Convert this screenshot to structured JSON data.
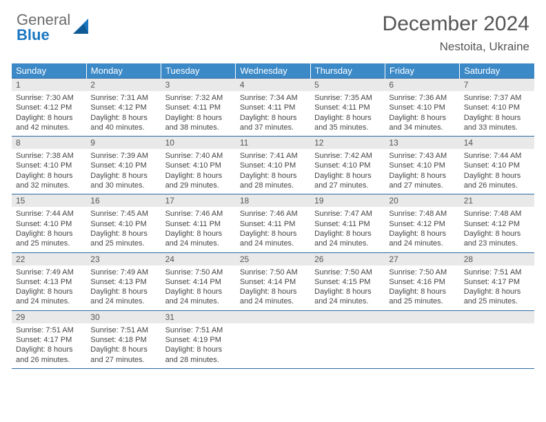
{
  "logo": {
    "word1": "General",
    "word2": "Blue"
  },
  "title": "December 2024",
  "location": "Nestoita, Ukraine",
  "colors": {
    "header_bg": "#3b89c7",
    "header_text": "#ffffff",
    "rule": "#2b6aa3",
    "daynum_bg": "#e9e9e9",
    "text": "#444444",
    "logo_gray": "#6b6b6b",
    "logo_blue": "#1976c1"
  },
  "weekdays": [
    "Sunday",
    "Monday",
    "Tuesday",
    "Wednesday",
    "Thursday",
    "Friday",
    "Saturday"
  ],
  "weeks": [
    [
      {
        "n": "1",
        "sr": "7:30 AM",
        "ss": "4:12 PM",
        "dl": "8 hours and 42 minutes."
      },
      {
        "n": "2",
        "sr": "7:31 AM",
        "ss": "4:12 PM",
        "dl": "8 hours and 40 minutes."
      },
      {
        "n": "3",
        "sr": "7:32 AM",
        "ss": "4:11 PM",
        "dl": "8 hours and 38 minutes."
      },
      {
        "n": "4",
        "sr": "7:34 AM",
        "ss": "4:11 PM",
        "dl": "8 hours and 37 minutes."
      },
      {
        "n": "5",
        "sr": "7:35 AM",
        "ss": "4:11 PM",
        "dl": "8 hours and 35 minutes."
      },
      {
        "n": "6",
        "sr": "7:36 AM",
        "ss": "4:10 PM",
        "dl": "8 hours and 34 minutes."
      },
      {
        "n": "7",
        "sr": "7:37 AM",
        "ss": "4:10 PM",
        "dl": "8 hours and 33 minutes."
      }
    ],
    [
      {
        "n": "8",
        "sr": "7:38 AM",
        "ss": "4:10 PM",
        "dl": "8 hours and 32 minutes."
      },
      {
        "n": "9",
        "sr": "7:39 AM",
        "ss": "4:10 PM",
        "dl": "8 hours and 30 minutes."
      },
      {
        "n": "10",
        "sr": "7:40 AM",
        "ss": "4:10 PM",
        "dl": "8 hours and 29 minutes."
      },
      {
        "n": "11",
        "sr": "7:41 AM",
        "ss": "4:10 PM",
        "dl": "8 hours and 28 minutes."
      },
      {
        "n": "12",
        "sr": "7:42 AM",
        "ss": "4:10 PM",
        "dl": "8 hours and 27 minutes."
      },
      {
        "n": "13",
        "sr": "7:43 AM",
        "ss": "4:10 PM",
        "dl": "8 hours and 27 minutes."
      },
      {
        "n": "14",
        "sr": "7:44 AM",
        "ss": "4:10 PM",
        "dl": "8 hours and 26 minutes."
      }
    ],
    [
      {
        "n": "15",
        "sr": "7:44 AM",
        "ss": "4:10 PM",
        "dl": "8 hours and 25 minutes."
      },
      {
        "n": "16",
        "sr": "7:45 AM",
        "ss": "4:10 PM",
        "dl": "8 hours and 25 minutes."
      },
      {
        "n": "17",
        "sr": "7:46 AM",
        "ss": "4:11 PM",
        "dl": "8 hours and 24 minutes."
      },
      {
        "n": "18",
        "sr": "7:46 AM",
        "ss": "4:11 PM",
        "dl": "8 hours and 24 minutes."
      },
      {
        "n": "19",
        "sr": "7:47 AM",
        "ss": "4:11 PM",
        "dl": "8 hours and 24 minutes."
      },
      {
        "n": "20",
        "sr": "7:48 AM",
        "ss": "4:12 PM",
        "dl": "8 hours and 24 minutes."
      },
      {
        "n": "21",
        "sr": "7:48 AM",
        "ss": "4:12 PM",
        "dl": "8 hours and 23 minutes."
      }
    ],
    [
      {
        "n": "22",
        "sr": "7:49 AM",
        "ss": "4:13 PM",
        "dl": "8 hours and 24 minutes."
      },
      {
        "n": "23",
        "sr": "7:49 AM",
        "ss": "4:13 PM",
        "dl": "8 hours and 24 minutes."
      },
      {
        "n": "24",
        "sr": "7:50 AM",
        "ss": "4:14 PM",
        "dl": "8 hours and 24 minutes."
      },
      {
        "n": "25",
        "sr": "7:50 AM",
        "ss": "4:14 PM",
        "dl": "8 hours and 24 minutes."
      },
      {
        "n": "26",
        "sr": "7:50 AM",
        "ss": "4:15 PM",
        "dl": "8 hours and 24 minutes."
      },
      {
        "n": "27",
        "sr": "7:50 AM",
        "ss": "4:16 PM",
        "dl": "8 hours and 25 minutes."
      },
      {
        "n": "28",
        "sr": "7:51 AM",
        "ss": "4:17 PM",
        "dl": "8 hours and 25 minutes."
      }
    ],
    [
      {
        "n": "29",
        "sr": "7:51 AM",
        "ss": "4:17 PM",
        "dl": "8 hours and 26 minutes."
      },
      {
        "n": "30",
        "sr": "7:51 AM",
        "ss": "4:18 PM",
        "dl": "8 hours and 27 minutes."
      },
      {
        "n": "31",
        "sr": "7:51 AM",
        "ss": "4:19 PM",
        "dl": "8 hours and 28 minutes."
      },
      null,
      null,
      null,
      null
    ]
  ],
  "labels": {
    "sunrise": "Sunrise:",
    "sunset": "Sunset:",
    "daylight": "Daylight:"
  }
}
